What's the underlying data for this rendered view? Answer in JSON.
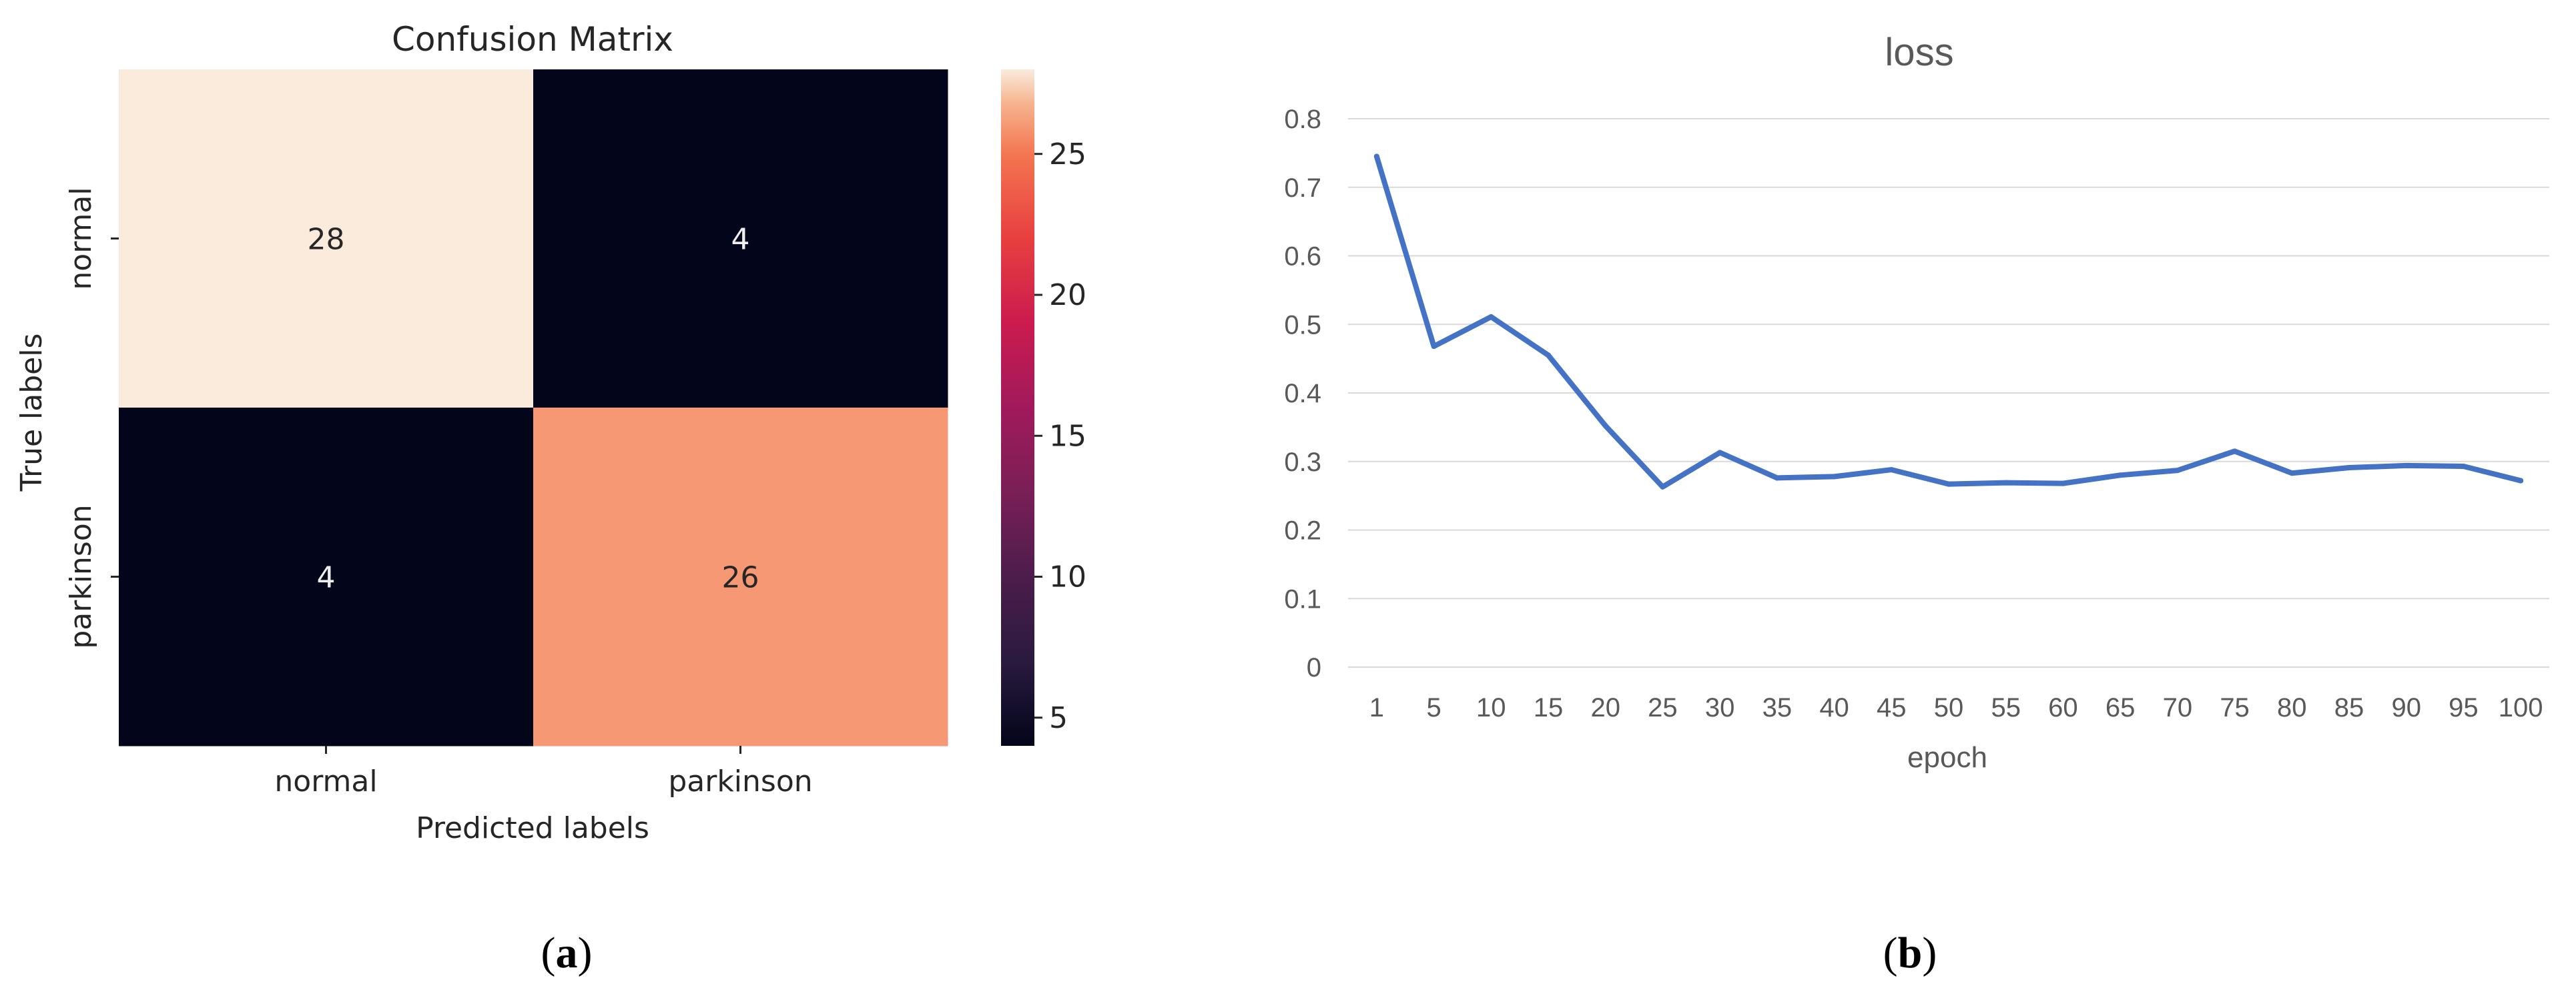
{
  "chart_data": [
    {
      "type": "heatmap",
      "title": "Confusion Matrix",
      "xlabel": "Predicted labels",
      "ylabel": "True labels",
      "x_categories": [
        "normal",
        "parkinson"
      ],
      "y_categories": [
        "normal",
        "parkinson"
      ],
      "values": [
        [
          28,
          4
        ],
        [
          4,
          26
        ]
      ],
      "annotations": [
        "28",
        "4",
        "4",
        "26"
      ],
      "colorbar": {
        "min": 4,
        "max": 28,
        "ticks": [
          "5",
          "10",
          "15",
          "20",
          "25"
        ],
        "tick_values": [
          5,
          10,
          15,
          20,
          25
        ],
        "colormap": "rocket"
      },
      "panel_label": {
        "open": "(",
        "letter": "a",
        "close": ")"
      }
    },
    {
      "type": "line",
      "title": "loss",
      "xlabel": "epoch",
      "ylabel": "",
      "categories": [
        "1",
        "5",
        "10",
        "15",
        "20",
        "25",
        "30",
        "35",
        "40",
        "45",
        "50",
        "55",
        "60",
        "65",
        "70",
        "75",
        "80",
        "85",
        "90",
        "95",
        "100"
      ],
      "series": [
        {
          "values": [
            0.745,
            0.468,
            0.511,
            0.455,
            0.352,
            0.263,
            0.313,
            0.276,
            0.278,
            0.288,
            0.267,
            0.269,
            0.268,
            0.28,
            0.287,
            0.315,
            0.283,
            0.291,
            0.294,
            0.293,
            0.272
          ],
          "color": "#4472c4"
        }
      ],
      "ylim": [
        0,
        0.8
      ],
      "yticks": [
        "0",
        "0.1",
        "0.2",
        "0.3",
        "0.4",
        "0.5",
        "0.6",
        "0.7",
        "0.8"
      ],
      "grid": true,
      "panel_label": {
        "open": "(",
        "letter": "b",
        "close": ")"
      }
    }
  ]
}
